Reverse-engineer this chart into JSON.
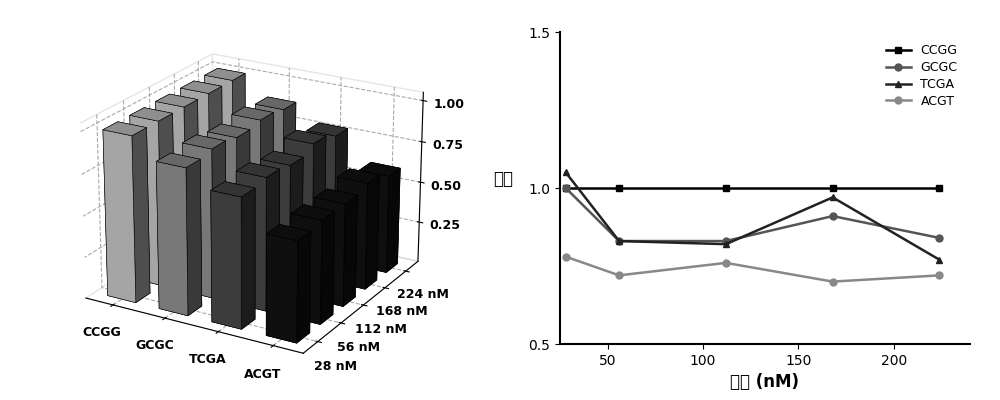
{
  "sequences": [
    "CCGG",
    "GCGC",
    "TCGA",
    "ACGT"
  ],
  "concentrations": [
    28,
    56,
    112,
    168,
    224
  ],
  "conc_labels": [
    "28 nM",
    "56 nM",
    "112 nM",
    "168 nM",
    "224 nM"
  ],
  "bar_heights": {
    "CCGG": [
      1.0,
      1.0,
      1.0,
      1.0,
      1.0
    ],
    "GCGC": [
      0.88,
      0.9,
      0.88,
      0.9,
      0.88
    ],
    "TCGA": [
      0.78,
      0.8,
      0.78,
      0.82,
      0.78
    ],
    "ACGT": [
      0.6,
      0.62,
      0.62,
      0.65,
      0.6
    ]
  },
  "seq_colors": {
    "CCGG": "#bbbbbb",
    "GCGC": "#888888",
    "TCGA": "#444444",
    "ACGT": "#111111"
  },
  "line_x": [
    28,
    56,
    112,
    168,
    224
  ],
  "line_CCGG": [
    1.0,
    1.0,
    1.0,
    1.0,
    1.0
  ],
  "line_GCGC": [
    1.0,
    0.83,
    0.83,
    0.91,
    0.84
  ],
  "line_TCGA": [
    1.05,
    0.83,
    0.82,
    0.97,
    0.77
  ],
  "line_ACGT": [
    0.78,
    0.72,
    0.76,
    0.7,
    0.72
  ],
  "ylabel_right": "频率",
  "xlabel_right": "浓度 (nM)",
  "ylim_right": [
    0.5,
    1.5
  ],
  "yticks_right": [
    0.5,
    1.0,
    1.5
  ],
  "xlim_right": [
    25,
    240
  ],
  "xticks_right": [
    50,
    100,
    150,
    200
  ],
  "elev": 22,
  "azim": -60
}
